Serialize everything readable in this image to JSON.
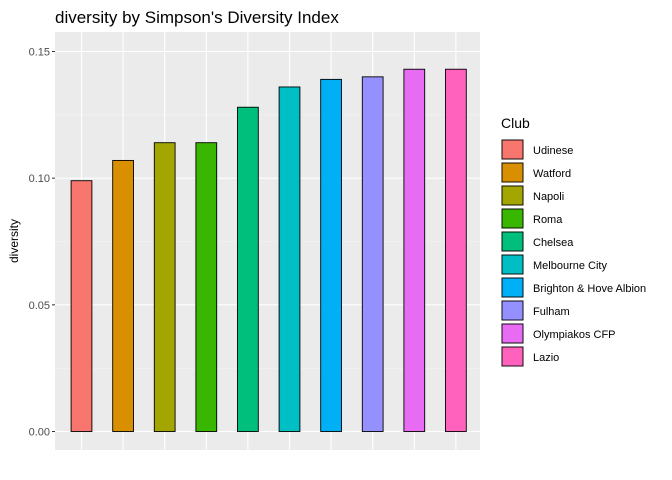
{
  "chart_data": {
    "type": "bar",
    "title": "diversity by Simpson's Diversity Index",
    "xlabel": "",
    "ylabel": "diversity",
    "ylim": [
      0,
      0.155
    ],
    "yticks": [
      {
        "value": 0.0,
        "label": "0.00"
      },
      {
        "value": 0.05,
        "label": "0.05"
      },
      {
        "value": 0.1,
        "label": "0.10"
      },
      {
        "value": 0.15,
        "label": "0.15"
      }
    ],
    "grid": true,
    "legend_title": "Club",
    "legend_position": "right",
    "categories": [
      "Udinese",
      "Watford",
      "Napoli",
      "Roma",
      "Chelsea",
      "Melbourne City",
      "Brighton & Hove Albion",
      "Fulham",
      "Olympiakos CFP",
      "Lazio"
    ],
    "values": [
      0.099,
      0.107,
      0.114,
      0.114,
      0.128,
      0.136,
      0.139,
      0.14,
      0.143,
      0.143
    ],
    "colors": [
      "#F8766D",
      "#D89000",
      "#A3A500",
      "#39B600",
      "#00BF7D",
      "#00BFC4",
      "#00B0F6",
      "#9590FF",
      "#E76BF3",
      "#FF62BC"
    ]
  }
}
